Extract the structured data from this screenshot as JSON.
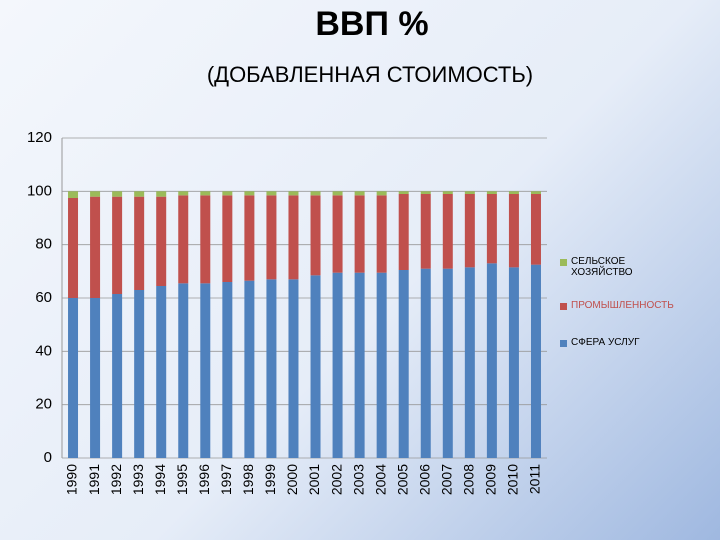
{
  "chart_data": {
    "type": "stacked-bar",
    "title": "ВВП %",
    "subtitle": "(ДОБАВЛЕННАЯ СТОИМОСТЬ)",
    "categories": [
      "1990",
      "1991",
      "1992",
      "1993",
      "1994",
      "1995",
      "1996",
      "1997",
      "1998",
      "1999",
      "2000",
      "2001",
      "2002",
      "2003",
      "2004",
      "2005",
      "2006",
      "2007",
      "2008",
      "2009",
      "2010",
      "2011"
    ],
    "series": [
      {
        "name": "СФЕРА УСЛУГ",
        "color": "#4f81bd",
        "values": [
          60,
          60,
          61.5,
          63,
          64.5,
          65.5,
          65.5,
          66,
          66.5,
          67,
          67,
          68.5,
          69.5,
          69.5,
          69.5,
          70.5,
          71,
          71,
          71.5,
          73,
          71.5,
          72.5
        ]
      },
      {
        "name": "ПРОМЫШЛЕННОСТЬ",
        "color": "#c0504d",
        "values": [
          37.5,
          38,
          36.5,
          35,
          33.5,
          33,
          33,
          32.5,
          32,
          31.5,
          31.5,
          30,
          29,
          29,
          29,
          28.5,
          28,
          28,
          27.5,
          26,
          27.5,
          26.5
        ]
      },
      {
        "name": "СЕЛЬСКОЕ ХОЗЯЙСТВО",
        "color": "#9bbb59",
        "values": [
          2.5,
          2,
          2,
          2,
          2,
          1.5,
          1.5,
          1.5,
          1.5,
          1.5,
          1.5,
          1.5,
          1.5,
          1.5,
          1.5,
          1,
          1,
          1,
          1,
          1,
          1,
          1
        ]
      }
    ],
    "ylim": [
      0,
      120
    ],
    "yticks": [
      0,
      20,
      40,
      60,
      80,
      100,
      120
    ],
    "grid": true
  }
}
